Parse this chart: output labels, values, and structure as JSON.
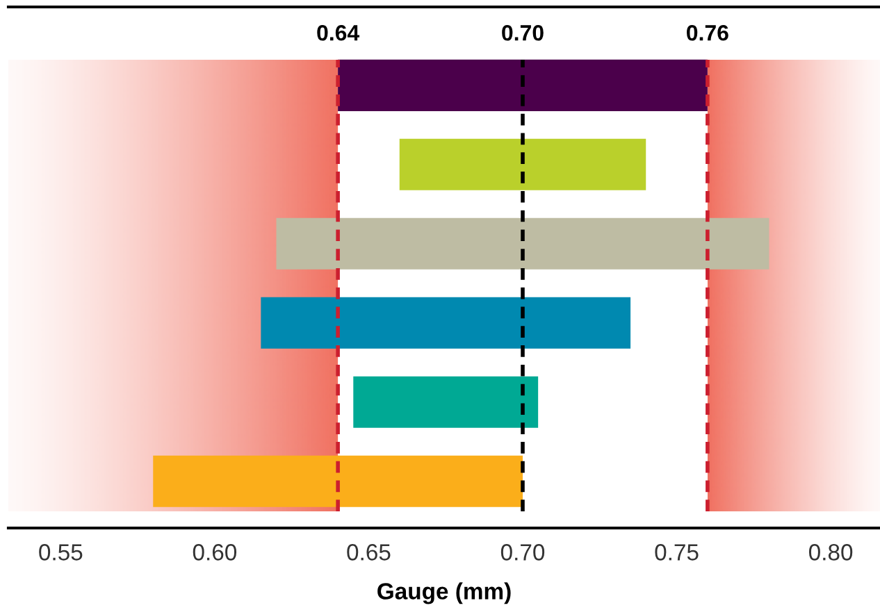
{
  "chart_data": {
    "type": "bar",
    "orientation": "horizontal",
    "xlabel": "Gauge (mm)",
    "categories": [
      null,
      null,
      null,
      null,
      null,
      null
    ],
    "base": [
      0.64,
      0.66,
      0.62,
      0.615,
      0.645,
      0.58
    ],
    "values": [
      0.12,
      0.08,
      0.16,
      0.12,
      0.06,
      0.12
    ],
    "colors": [
      "#4b004b",
      "#bad02b",
      "#bebca3",
      "#0089b0",
      "#00a994",
      "#fbae1a"
    ],
    "xlim": [
      0.533,
      0.816
    ],
    "xticks": [
      {
        "value": 0.55,
        "label": "0.55"
      },
      {
        "value": 0.6,
        "label": "0.60"
      },
      {
        "value": 0.65,
        "label": "0.65"
      },
      {
        "value": 0.7,
        "label": "0.70"
      },
      {
        "value": 0.75,
        "label": "0.75"
      },
      {
        "value": 0.8,
        "label": "0.80"
      }
    ],
    "bands": [
      {
        "axis": "x",
        "from": 0.533,
        "to": 0.64,
        "color": "#f07060"
      },
      {
        "axis": "x",
        "from": 0.76,
        "to": 0.816,
        "color": "#f07060"
      }
    ],
    "ref_lines": [
      {
        "axis": "x",
        "value": 0.64,
        "label": "0.64",
        "color": "#cc1f2f",
        "line_style": "dashed"
      },
      {
        "axis": "x",
        "value": 0.7,
        "label": "0.70",
        "color": "#000000",
        "line_style": "dashed"
      },
      {
        "axis": "x",
        "value": 0.76,
        "label": "0.76",
        "color": "#cc1f2f",
        "line_style": "dashed"
      }
    ],
    "grid": false,
    "legend": false
  }
}
